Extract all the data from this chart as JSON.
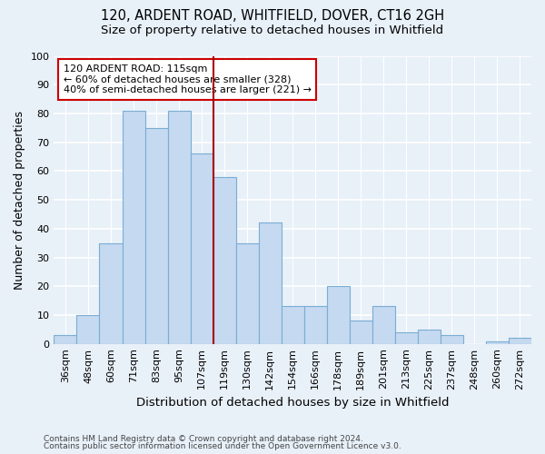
{
  "title1": "120, ARDENT ROAD, WHITFIELD, DOVER, CT16 2GH",
  "title2": "Size of property relative to detached houses in Whitfield",
  "xlabel": "Distribution of detached houses by size in Whitfield",
  "ylabel": "Number of detached properties",
  "footer1": "Contains HM Land Registry data © Crown copyright and database right 2024.",
  "footer2": "Contains public sector information licensed under the Open Government Licence v3.0.",
  "bin_labels": [
    "36sqm",
    "48sqm",
    "60sqm",
    "71sqm",
    "83sqm",
    "95sqm",
    "107sqm",
    "119sqm",
    "130sqm",
    "142sqm",
    "154sqm",
    "166sqm",
    "178sqm",
    "189sqm",
    "201sqm",
    "213sqm",
    "225sqm",
    "237sqm",
    "248sqm",
    "260sqm",
    "272sqm"
  ],
  "bar_heights": [
    3,
    10,
    35,
    81,
    75,
    81,
    66,
    58,
    35,
    42,
    13,
    13,
    20,
    8,
    13,
    4,
    5,
    3,
    0,
    1,
    2
  ],
  "bar_color": "#c5d9f0",
  "bar_edge_color": "#7aadd4",
  "ref_line_color": "#aa0000",
  "annotation_box_edge": "#cc0000",
  "annotation_box_color": "#ffffff",
  "ref_line_bin": 7,
  "annotation_title": "120 ARDENT ROAD: 115sqm",
  "annotation_line1": "← 60% of detached houses are smaller (328)",
  "annotation_line2": "40% of semi-detached houses are larger (221) →",
  "ylim": [
    0,
    100
  ],
  "yticks": [
    0,
    10,
    20,
    30,
    40,
    50,
    60,
    70,
    80,
    90,
    100
  ],
  "bg_color": "#e8f0f8",
  "grid_color": "#ffffff",
  "title1_fontsize": 10.5,
  "title2_fontsize": 9.5,
  "axis_label_fontsize": 9,
  "tick_fontsize": 8,
  "footer_fontsize": 6.5
}
